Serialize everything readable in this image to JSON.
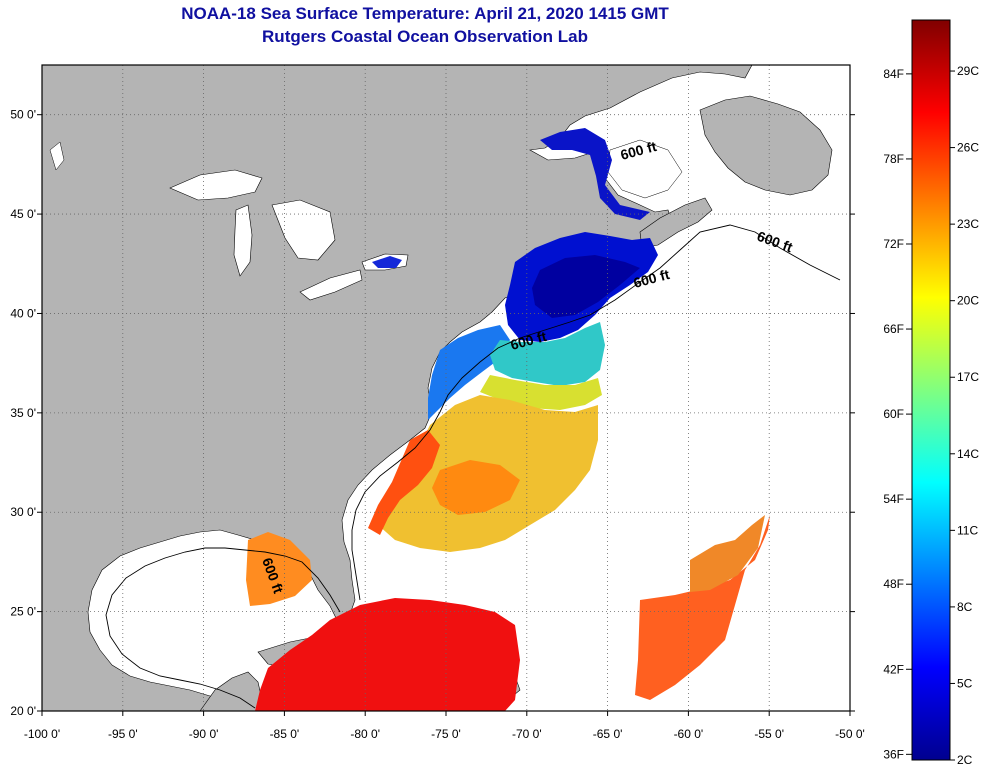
{
  "title": {
    "line1": "NOAA-18 Sea Surface Temperature:  April 21, 2020 1415 GMT",
    "line2": "Rutgers Coastal Ocean Observation Lab"
  },
  "map": {
    "lon_range": [
      -100,
      -50
    ],
    "lat_range": [
      20,
      52.5
    ],
    "lon_ticks": [
      {
        "value": -100,
        "label": "-100 0'"
      },
      {
        "value": -95,
        "label": "-95 0'"
      },
      {
        "value": -90,
        "label": "-90 0'"
      },
      {
        "value": -85,
        "label": "-85 0'"
      },
      {
        "value": -80,
        "label": "-80 0'"
      },
      {
        "value": -75,
        "label": "-75 0'"
      },
      {
        "value": -70,
        "label": "-70 0'"
      },
      {
        "value": -65,
        "label": "-65 0'"
      },
      {
        "value": -60,
        "label": "-60 0'"
      },
      {
        "value": -55,
        "label": "-55 0'"
      },
      {
        "value": -50,
        "label": "-50 0'"
      }
    ],
    "lat_ticks": [
      {
        "value": 20,
        "label": "20 0'"
      },
      {
        "value": 25,
        "label": "25 0'"
      },
      {
        "value": 30,
        "label": "30 0'"
      },
      {
        "value": 35,
        "label": "35 0'"
      },
      {
        "value": 40,
        "label": "40 0'"
      },
      {
        "value": 45,
        "label": "45 0'"
      },
      {
        "value": 50,
        "label": "50 0'"
      }
    ],
    "contour_label": "600 ft",
    "land_color": "#b4b4b4",
    "grid": "dotted"
  },
  "colorbar": {
    "fahrenheit": [
      {
        "label": "84F",
        "value": 84
      },
      {
        "label": "78F",
        "value": 78
      },
      {
        "label": "72F",
        "value": 72
      },
      {
        "label": "66F",
        "value": 66
      },
      {
        "label": "60F",
        "value": 60
      },
      {
        "label": "54F",
        "value": 54
      },
      {
        "label": "48F",
        "value": 48
      },
      {
        "label": "42F",
        "value": 42
      },
      {
        "label": "36F",
        "value": 36
      }
    ],
    "celsius": [
      {
        "label": "29C",
        "value": 29
      },
      {
        "label": "26C",
        "value": 26
      },
      {
        "label": "23C",
        "value": 23
      },
      {
        "label": "20C",
        "value": 20
      },
      {
        "label": "17C",
        "value": 17
      },
      {
        "label": "14C",
        "value": 14
      },
      {
        "label": "11C",
        "value": 11
      },
      {
        "label": "8C",
        "value": 8
      },
      {
        "label": "5C",
        "value": 5
      },
      {
        "label": "2C",
        "value": 2
      }
    ],
    "range_c": [
      2,
      31
    ],
    "colors": [
      "#00008f",
      "#0000ff",
      "#0080ff",
      "#00ffff",
      "#80ff80",
      "#ffff00",
      "#ff8000",
      "#ff0000",
      "#800000"
    ]
  }
}
